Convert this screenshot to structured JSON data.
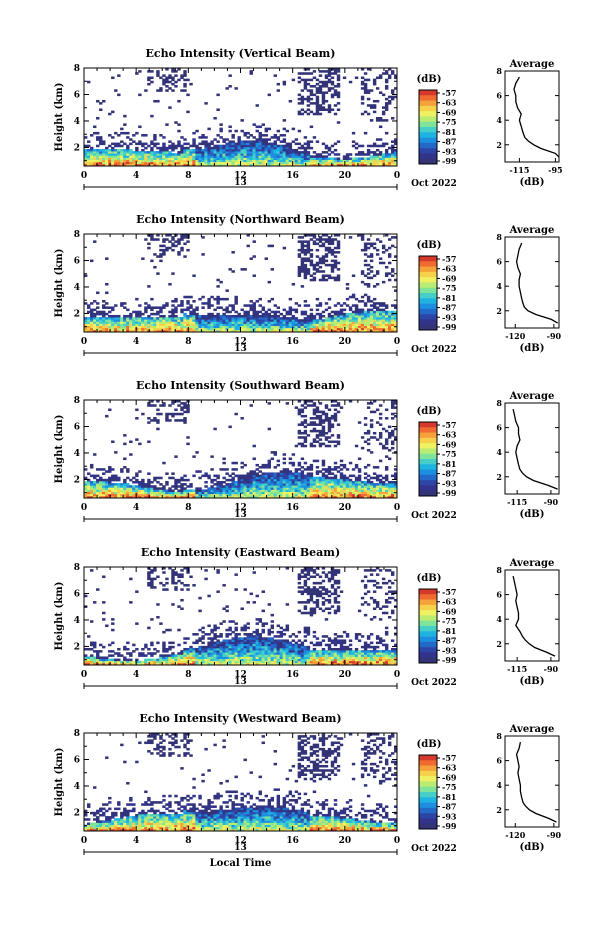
{
  "colorbar": {
    "unit": "(dB)",
    "labels": [
      "-57",
      "-63",
      "-69",
      "-75",
      "-81",
      "-87",
      "-93",
      "-99"
    ],
    "colors": [
      "#d4392c",
      "#f06b2f",
      "#f5a23a",
      "#f6d24c",
      "#eef262",
      "#b9ec72",
      "#7fe39a",
      "#45cfc8",
      "#1fb3e2",
      "#1d8fe0",
      "#2369c8",
      "#2d45a6",
      "#32338a",
      "#333377"
    ]
  },
  "date_label": "Oct 2022",
  "x_axis": {
    "ticks": [
      "0",
      "4",
      "8",
      "12",
      "16",
      "20",
      "0"
    ],
    "day_label": "13",
    "xlabel": "Local Time"
  },
  "chart_data": [
    {
      "type": "heatmap",
      "title": "Echo Intensity (Vertical Beam)",
      "ylabel": "Height (km)",
      "yticks": [
        "2",
        "4",
        "6",
        "8"
      ],
      "ylim": [
        0.6,
        8.0
      ],
      "xlim": [
        0,
        24
      ],
      "clim": [
        -99,
        -57
      ],
      "average": {
        "title": "Average",
        "xlabel": "(dB)",
        "xticks": [
          "-115",
          "-95"
        ],
        "xlim": [
          -123,
          -93
        ],
        "height": [
          1.0,
          1.3,
          1.7,
          2.0,
          2.3,
          2.6,
          3.0,
          3.5,
          4.0,
          4.5,
          5.0,
          5.5,
          6.0,
          6.5,
          7.0,
          7.5
        ],
        "value": [
          -93,
          -95,
          -103,
          -107,
          -110,
          -112,
          -113,
          -114,
          -115,
          -114,
          -116,
          -117,
          -117,
          -118,
          -117,
          -115
        ]
      }
    },
    {
      "type": "heatmap",
      "title": "Echo Intensity (Northward Beam)",
      "ylabel": "Height (km)",
      "yticks": [
        "2",
        "4",
        "6",
        "8"
      ],
      "ylim": [
        0.6,
        8.0
      ],
      "xlim": [
        0,
        24
      ],
      "clim": [
        -99,
        -57
      ],
      "average": {
        "title": "Average",
        "xlabel": "(dB)",
        "xticks": [
          "-120",
          "-90"
        ],
        "xlim": [
          -128,
          -86
        ],
        "height": [
          1.0,
          1.3,
          1.7,
          2.0,
          2.3,
          2.6,
          3.0,
          3.5,
          4.0,
          4.5,
          5.0,
          5.5,
          6.0,
          6.5,
          7.0,
          7.5
        ],
        "value": [
          -87,
          -92,
          -104,
          -110,
          -113,
          -114,
          -115,
          -116,
          -117,
          -117,
          -116,
          -118,
          -119,
          -118,
          -117,
          -115
        ]
      }
    },
    {
      "type": "heatmap",
      "title": "Echo Intensity (Southward Beam)",
      "ylabel": "Height (km)",
      "yticks": [
        "2",
        "4",
        "6",
        "8"
      ],
      "ylim": [
        0.6,
        8.0
      ],
      "xlim": [
        0,
        24
      ],
      "clim": [
        -99,
        -57
      ],
      "average": {
        "title": "Average",
        "xlabel": "(dB)",
        "xticks": [
          "-115",
          "-90"
        ],
        "xlim": [
          -124,
          -84
        ],
        "height": [
          1.0,
          1.3,
          1.7,
          2.0,
          2.3,
          2.6,
          3.0,
          3.5,
          4.0,
          4.5,
          5.0,
          5.5,
          6.0,
          6.5,
          7.0,
          7.5
        ],
        "value": [
          -85,
          -92,
          -103,
          -108,
          -111,
          -113,
          -114,
          -115,
          -116,
          -115,
          -113,
          -114,
          -114,
          -116,
          -117,
          -118
        ]
      }
    },
    {
      "type": "heatmap",
      "title": "Echo Intensity (Eastward Beam)",
      "ylabel": "Height (km)",
      "yticks": [
        "2",
        "4",
        "6",
        "8"
      ],
      "ylim": [
        0.6,
        8.0
      ],
      "xlim": [
        0,
        24
      ],
      "clim": [
        -99,
        -57
      ],
      "average": {
        "title": "Average",
        "xlabel": "(dB)",
        "xticks": [
          "-115",
          "-90"
        ],
        "xlim": [
          -124,
          -84
        ],
        "height": [
          1.0,
          1.3,
          1.7,
          2.0,
          2.3,
          2.6,
          3.0,
          3.5,
          4.0,
          4.5,
          5.0,
          5.5,
          6.0,
          6.5,
          7.0,
          7.5
        ],
        "value": [
          -87,
          -93,
          -102,
          -106,
          -109,
          -111,
          -113,
          -116,
          -114,
          -114,
          -115,
          -116,
          -115,
          -116,
          -117,
          -118
        ]
      }
    },
    {
      "type": "heatmap",
      "title": "Echo Intensity (Westward Beam)",
      "ylabel": "Height (km)",
      "yticks": [
        "2",
        "4",
        "6",
        "8"
      ],
      "ylim": [
        0.6,
        8.0
      ],
      "xlim": [
        0,
        24
      ],
      "clim": [
        -99,
        -57
      ],
      "average": {
        "title": "Average",
        "xlabel": "(dB)",
        "xticks": [
          "-120",
          "-90"
        ],
        "xlim": [
          -128,
          -86
        ],
        "height": [
          1.0,
          1.3,
          1.7,
          2.0,
          2.3,
          2.6,
          3.0,
          3.5,
          4.0,
          4.5,
          5.0,
          5.5,
          6.0,
          6.5,
          7.0,
          7.5
        ],
        "value": [
          -88,
          -94,
          -104,
          -109,
          -112,
          -114,
          -115,
          -116,
          -116,
          -117,
          -118,
          -117,
          -118,
          -119,
          -117,
          -116
        ]
      }
    }
  ]
}
